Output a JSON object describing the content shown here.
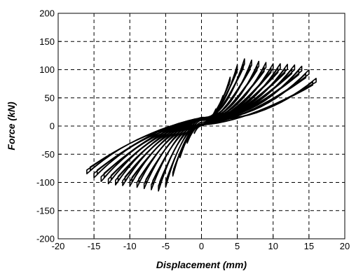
{
  "chart_data": {
    "type": "line",
    "title": "",
    "xlabel": "Displacement   (mm)",
    "ylabel": "Force    (kN)",
    "xlim": [
      -20,
      20
    ],
    "ylim": [
      -200,
      200
    ],
    "x_ticks": [
      -20,
      -15,
      -10,
      -5,
      0,
      5,
      10,
      15,
      20
    ],
    "y_ticks": [
      -200,
      -150,
      -100,
      -50,
      0,
      50,
      100,
      150,
      200
    ],
    "grid": true,
    "grid_style": "dashed",
    "line_color": "#000000",
    "series": [
      {
        "description": "hysteresis loops",
        "cycles": [
          {
            "dmax": 1.0,
            "fpos": 12,
            "dmin": -1.0,
            "fneg": -12
          },
          {
            "dmax": 2.0,
            "fpos": 28,
            "dmin": -2.0,
            "fneg": -28
          },
          {
            "dmax": 3.0,
            "fpos": 50,
            "dmin": -3.0,
            "fneg": -52
          },
          {
            "dmax": 4.0,
            "fpos": 80,
            "dmin": -4.0,
            "fneg": -82
          },
          {
            "dmax": 5.0,
            "fpos": 100,
            "dmin": -5.0,
            "fneg": -100
          },
          {
            "dmax": 6.0,
            "fpos": 110,
            "dmin": -6.0,
            "fneg": -106
          },
          {
            "dmax": 7.0,
            "fpos": 108,
            "dmin": -7.0,
            "fneg": -104
          },
          {
            "dmax": 8.0,
            "fpos": 106,
            "dmin": -8.0,
            "fneg": -102
          },
          {
            "dmax": 9.0,
            "fpos": 104,
            "dmin": -9.0,
            "fneg": -100
          },
          {
            "dmax": 10.0,
            "fpos": 102,
            "dmin": -10.0,
            "fneg": -98
          },
          {
            "dmax": 11.0,
            "fpos": 102,
            "dmin": -11.0,
            "fneg": -97
          },
          {
            "dmax": 12.0,
            "fpos": 101,
            "dmin": -12.0,
            "fneg": -96
          },
          {
            "dmax": 13.0,
            "fpos": 100,
            "dmin": -13.0,
            "fneg": -94
          },
          {
            "dmax": 14.0,
            "fpos": 98,
            "dmin": -14.0,
            "fneg": -90
          },
          {
            "dmax": 15.0,
            "fpos": 92,
            "dmin": -15.0,
            "fneg": -84
          },
          {
            "dmax": 16.0,
            "fpos": 78,
            "dmin": -16.0,
            "fneg": -78
          }
        ]
      }
    ]
  }
}
